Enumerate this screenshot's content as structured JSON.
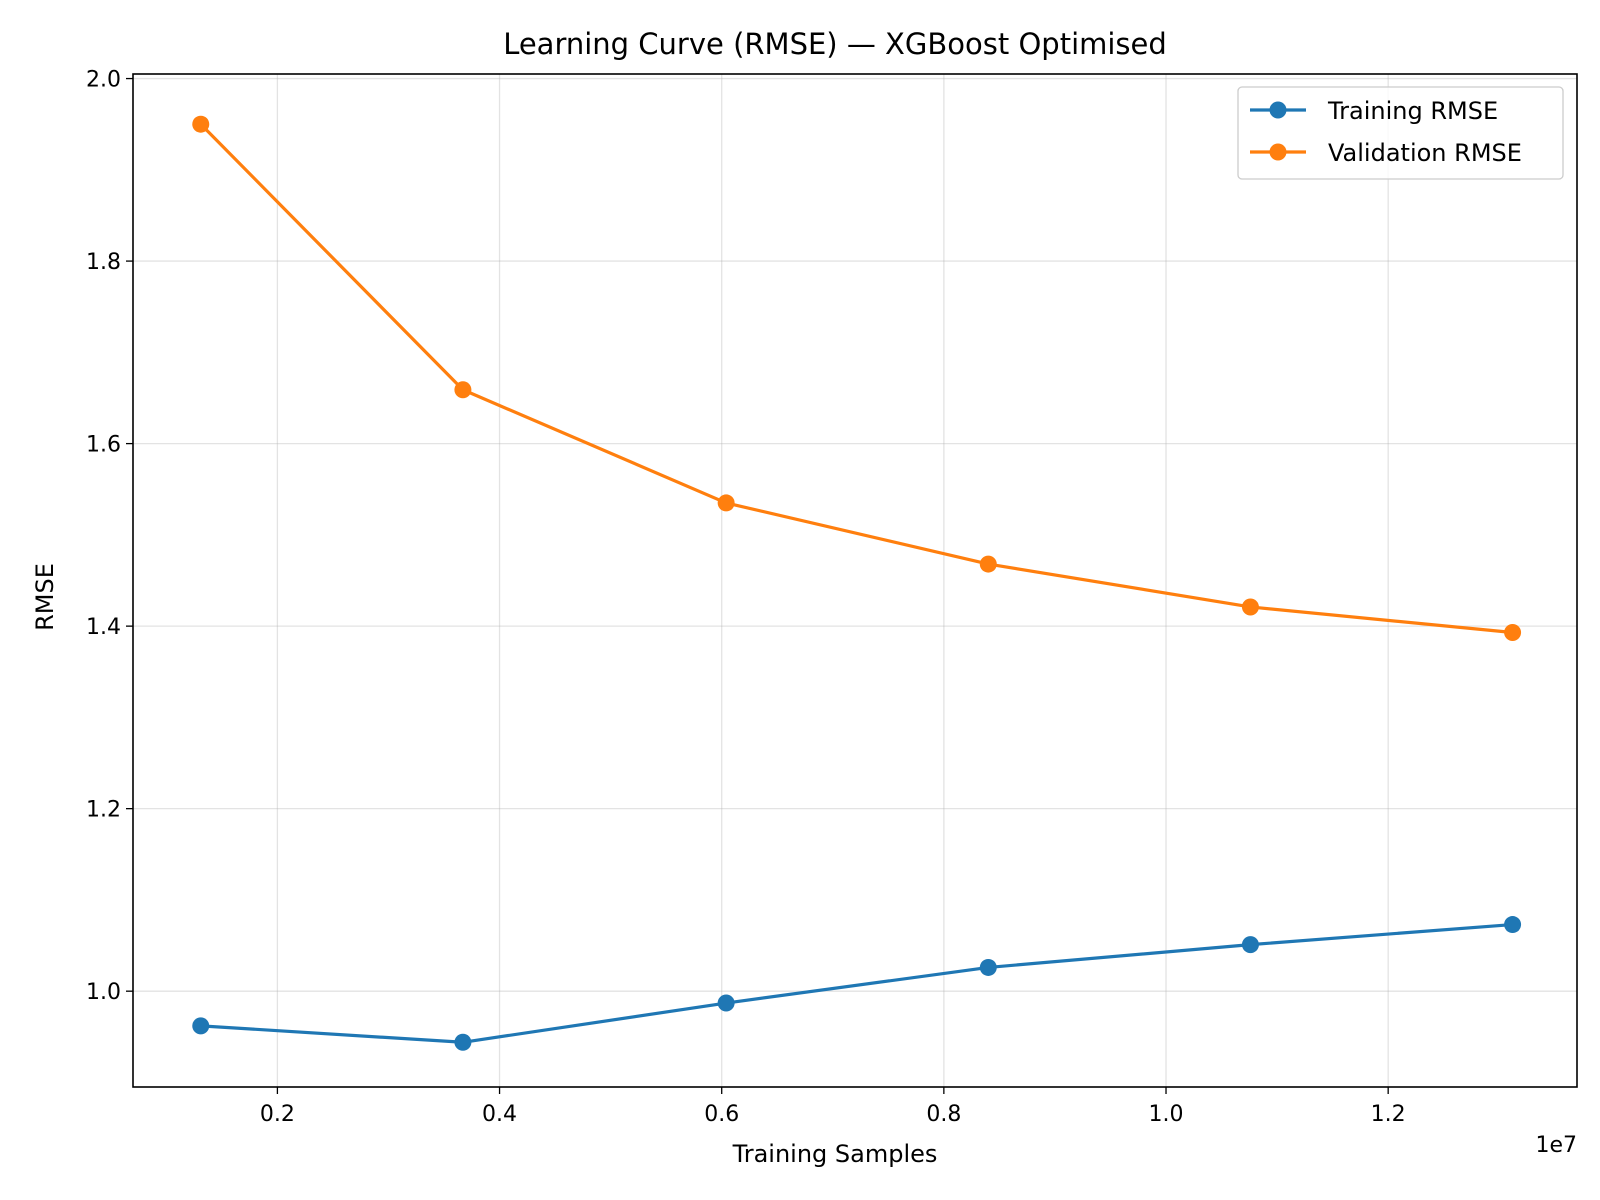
{
  "chart_data": {
    "type": "line",
    "title": "Learning Curve (RMSE) — XGBoost Optimised",
    "xlabel": "Training Samples",
    "ylabel": "RMSE",
    "x_offset_label": "1e7",
    "xlim": [
      0.07,
      1.37
    ],
    "ylim": [
      0.895,
      2.005
    ],
    "x_ticks": [
      0.2,
      0.4,
      0.6,
      0.8,
      1.0,
      1.2
    ],
    "x_tick_labels": [
      "0.2",
      "0.4",
      "0.6",
      "0.8",
      "1.0",
      "1.2"
    ],
    "y_ticks": [
      1.0,
      1.2,
      1.4,
      1.6,
      1.8,
      2.0
    ],
    "y_tick_labels": [
      "1.0",
      "1.2",
      "1.4",
      "1.6",
      "1.8",
      "2.0"
    ],
    "grid": true,
    "legend_position": "top-right",
    "x": [
      0.131,
      0.367,
      0.604,
      0.84,
      1.076,
      1.312
    ],
    "series": [
      {
        "name": "Training RMSE",
        "color": "#1f77b4",
        "values": [
          0.962,
          0.944,
          0.987,
          1.026,
          1.051,
          1.073
        ]
      },
      {
        "name": "Validation RMSE",
        "color": "#ff7f0e",
        "values": [
          1.95,
          1.659,
          1.535,
          1.468,
          1.421,
          1.393
        ]
      }
    ]
  }
}
